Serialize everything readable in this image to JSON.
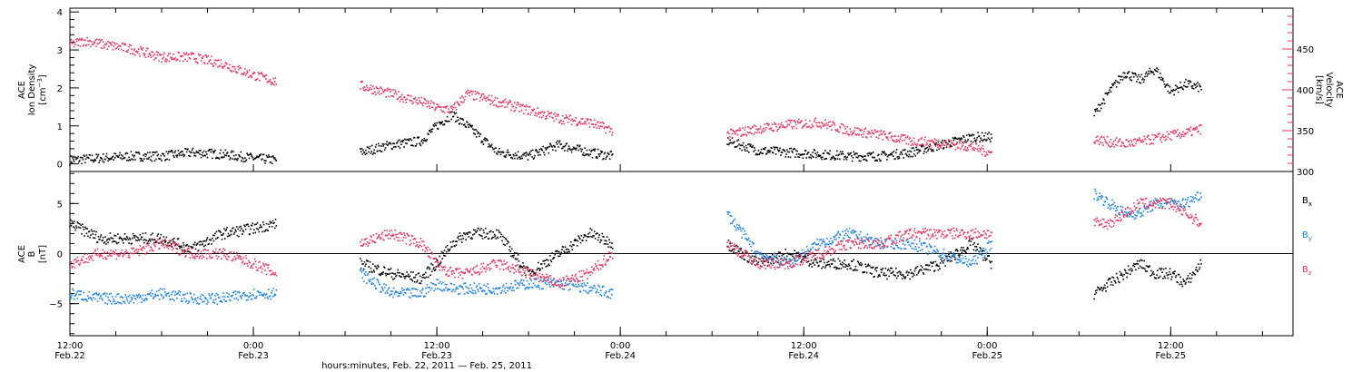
{
  "colors": {
    "density": "#000000",
    "velocity": "#e8365f",
    "bx": "#000000",
    "by": "#1f82e6",
    "bz": "#e8365f",
    "axis": "#000000"
  },
  "xaxis": {
    "ticks": [
      {
        "hour": 12,
        "label": "12:00",
        "sublabel": "Feb.22"
      },
      {
        "hour": 24,
        "label": "0:00",
        "sublabel": "Feb.23"
      },
      {
        "hour": 36,
        "label": "12:00",
        "sublabel": "Feb.23"
      },
      {
        "hour": 48,
        "label": "0:00",
        "sublabel": "Feb.24"
      },
      {
        "hour": 60,
        "label": "12:00",
        "sublabel": "Feb.24"
      },
      {
        "hour": 72,
        "label": "0:00",
        "sublabel": "Feb.25"
      },
      {
        "hour": 84,
        "label": "12:00",
        "sublabel": "Feb.25"
      }
    ],
    "label": "hours:minutes, Feb. 22, 2011 — Feb. 25, 2011"
  },
  "chart_data": [
    {
      "type": "scatter",
      "panel": "top",
      "x_unit": "hours since 2011-02-22 00:00",
      "xlim": [
        12,
        92
      ],
      "ylim_left": [
        -0.2,
        4.1
      ],
      "ylim_right": [
        300,
        500
      ],
      "left_axis": {
        "label_lines": [
          "ACE",
          "Ion Density"
        ],
        "unit": "[cm",
        "unit_sup": "−3",
        "unit_tail": "]",
        "ticks": [
          "0",
          "1",
          "2",
          "3",
          "4"
        ]
      },
      "right_axis": {
        "label_lines": [
          "ACE",
          "Velocity"
        ],
        "unit": "[km/s]",
        "ticks": [
          "300",
          "350",
          "400",
          "450"
        ]
      },
      "series": [
        {
          "axis": "left",
          "segments": [
            {
              "x": [
                12,
                14,
                16,
                18,
                20,
                22,
                24,
                25.5
              ],
              "y": [
                0.1,
                0.15,
                0.2,
                0.2,
                0.3,
                0.25,
                0.15,
                0.1
              ]
            },
            {
              "x": [
                31,
                33,
                35,
                36,
                37,
                38,
                40,
                42,
                44,
                46,
                47.5
              ],
              "y": [
                0.3,
                0.5,
                0.6,
                1.0,
                1.3,
                1.0,
                0.3,
                0.2,
                0.5,
                0.3,
                0.2
              ]
            },
            {
              "x": [
                55,
                57,
                59,
                61,
                63,
                65,
                67,
                69,
                71,
                72.3
              ],
              "y": [
                0.6,
                0.35,
                0.3,
                0.25,
                0.2,
                0.2,
                0.3,
                0.5,
                0.7,
                0.7
              ]
            },
            {
              "x": [
                79,
                80,
                81,
                82,
                83,
                84,
                85,
                86
              ],
              "y": [
                1.3,
                1.9,
                2.4,
                2.2,
                2.5,
                1.9,
                2.1,
                2.0
              ]
            }
          ]
        },
        {
          "name": "Velocity",
          "axis": "right",
          "segments": [
            {
              "x": [
                12,
                13,
                14,
                16,
                18,
                20,
                22,
                24,
                25.5
              ],
              "y": [
                455,
                460,
                456,
                450,
                440,
                440,
                432,
                418,
                410
              ]
            },
            {
              "x": [
                31,
                33,
                35,
                36,
                37,
                38,
                40,
                42,
                44,
                46,
                47.5
              ],
              "y": [
                405,
                395,
                385,
                378,
                375,
                395,
                385,
                375,
                365,
                360,
                350
              ]
            },
            {
              "x": [
                55,
                57,
                59,
                61,
                63,
                65,
                67,
                69,
                71,
                72.3
              ],
              "y": [
                345,
                352,
                357,
                360,
                350,
                345,
                337,
                335,
                330,
                322
              ]
            },
            {
              "x": [
                79,
                80,
                81,
                82,
                83,
                84,
                85,
                86
              ],
              "y": [
                340,
                336,
                334,
                336,
                340,
                344,
                347,
                352
              ]
            }
          ]
        }
      ]
    },
    {
      "type": "scatter",
      "panel": "bottom",
      "x_unit": "hours since 2011-02-22 00:00",
      "xlim": [
        12,
        92
      ],
      "ylim": [
        -8.2,
        8.2
      ],
      "left_axis": {
        "label_lines": [
          "ACE",
          "B"
        ],
        "unit": "[nT]",
        "ticks": [
          "−5",
          "0",
          "5"
        ]
      },
      "series": [
        {
          "name": "B",
          "sub": "x",
          "segments": [
            {
              "x": [
                12,
                14,
                16,
                18,
                20,
                22,
                24,
                25.5
              ],
              "y": [
                3,
                1.5,
                1.5,
                1.5,
                0.5,
                2,
                2.5,
                3
              ]
            },
            {
              "x": [
                31,
                33,
                35,
                36,
                37,
                38,
                40,
                42,
                44,
                46,
                47.5
              ],
              "y": [
                -1,
                -2,
                -2.5,
                -1,
                1,
                2,
                2,
                -2,
                0,
                2,
                1
              ]
            },
            {
              "x": [
                55,
                57,
                59,
                61,
                63,
                65,
                67,
                69,
                71,
                72.3
              ],
              "y": [
                1,
                -1,
                0,
                -1,
                -1,
                -2,
                -2,
                -1,
                1,
                -1
              ]
            },
            {
              "x": [
                79,
                80,
                81,
                82,
                83,
                84,
                85,
                86
              ],
              "y": [
                -4,
                -3,
                -2,
                -1,
                -2,
                -2,
                -3,
                -1
              ]
            }
          ]
        },
        {
          "name": "B",
          "sub": "y",
          "segments": [
            {
              "x": [
                12,
                14,
                16,
                18,
                20,
                22,
                24,
                25.5
              ],
              "y": [
                -4,
                -4.5,
                -4.5,
                -4,
                -4.5,
                -4.5,
                -4,
                -4
              ]
            },
            {
              "x": [
                31,
                33,
                35,
                36,
                37,
                38,
                40,
                42,
                44,
                46,
                47.5
              ],
              "y": [
                -2,
                -4,
                -4,
                -3,
                -3.5,
                -3.5,
                -3.5,
                -3,
                -3,
                -3.5,
                -4
              ]
            },
            {
              "x": [
                55,
                57,
                59,
                61,
                63,
                65,
                67,
                69,
                71,
                72.3
              ],
              "y": [
                4,
                0,
                -1,
                1,
                2,
                1,
                1,
                0,
                -1,
                1
              ]
            },
            {
              "x": [
                79,
                80,
                81,
                82,
                83,
                84,
                85,
                86
              ],
              "y": [
                6,
                5,
                4,
                4,
                5,
                5,
                5,
                6
              ]
            }
          ]
        },
        {
          "name": "B",
          "sub": "z",
          "segments": [
            {
              "x": [
                12,
                14,
                16,
                18,
                20,
                22,
                24,
                25.5
              ],
              "y": [
                -1,
                0,
                0,
                1,
                0,
                0,
                -1,
                -2
              ]
            },
            {
              "x": [
                31,
                33,
                35,
                36,
                37,
                38,
                40,
                42,
                44,
                46,
                47.5
              ],
              "y": [
                1,
                2,
                1,
                -1,
                -2,
                -2,
                -1,
                -2,
                -3,
                -2,
                0
              ]
            },
            {
              "x": [
                55,
                57,
                59,
                61,
                63,
                65,
                67,
                69,
                71,
                72.3
              ],
              "y": [
                1,
                -1,
                -1,
                0,
                1,
                1,
                2,
                2,
                2,
                2
              ]
            },
            {
              "x": [
                79,
                80,
                81,
                82,
                83,
                84,
                85,
                86
              ],
              "y": [
                3,
                3,
                4,
                5,
                5,
                5,
                4,
                3
              ]
            }
          ]
        }
      ]
    }
  ]
}
